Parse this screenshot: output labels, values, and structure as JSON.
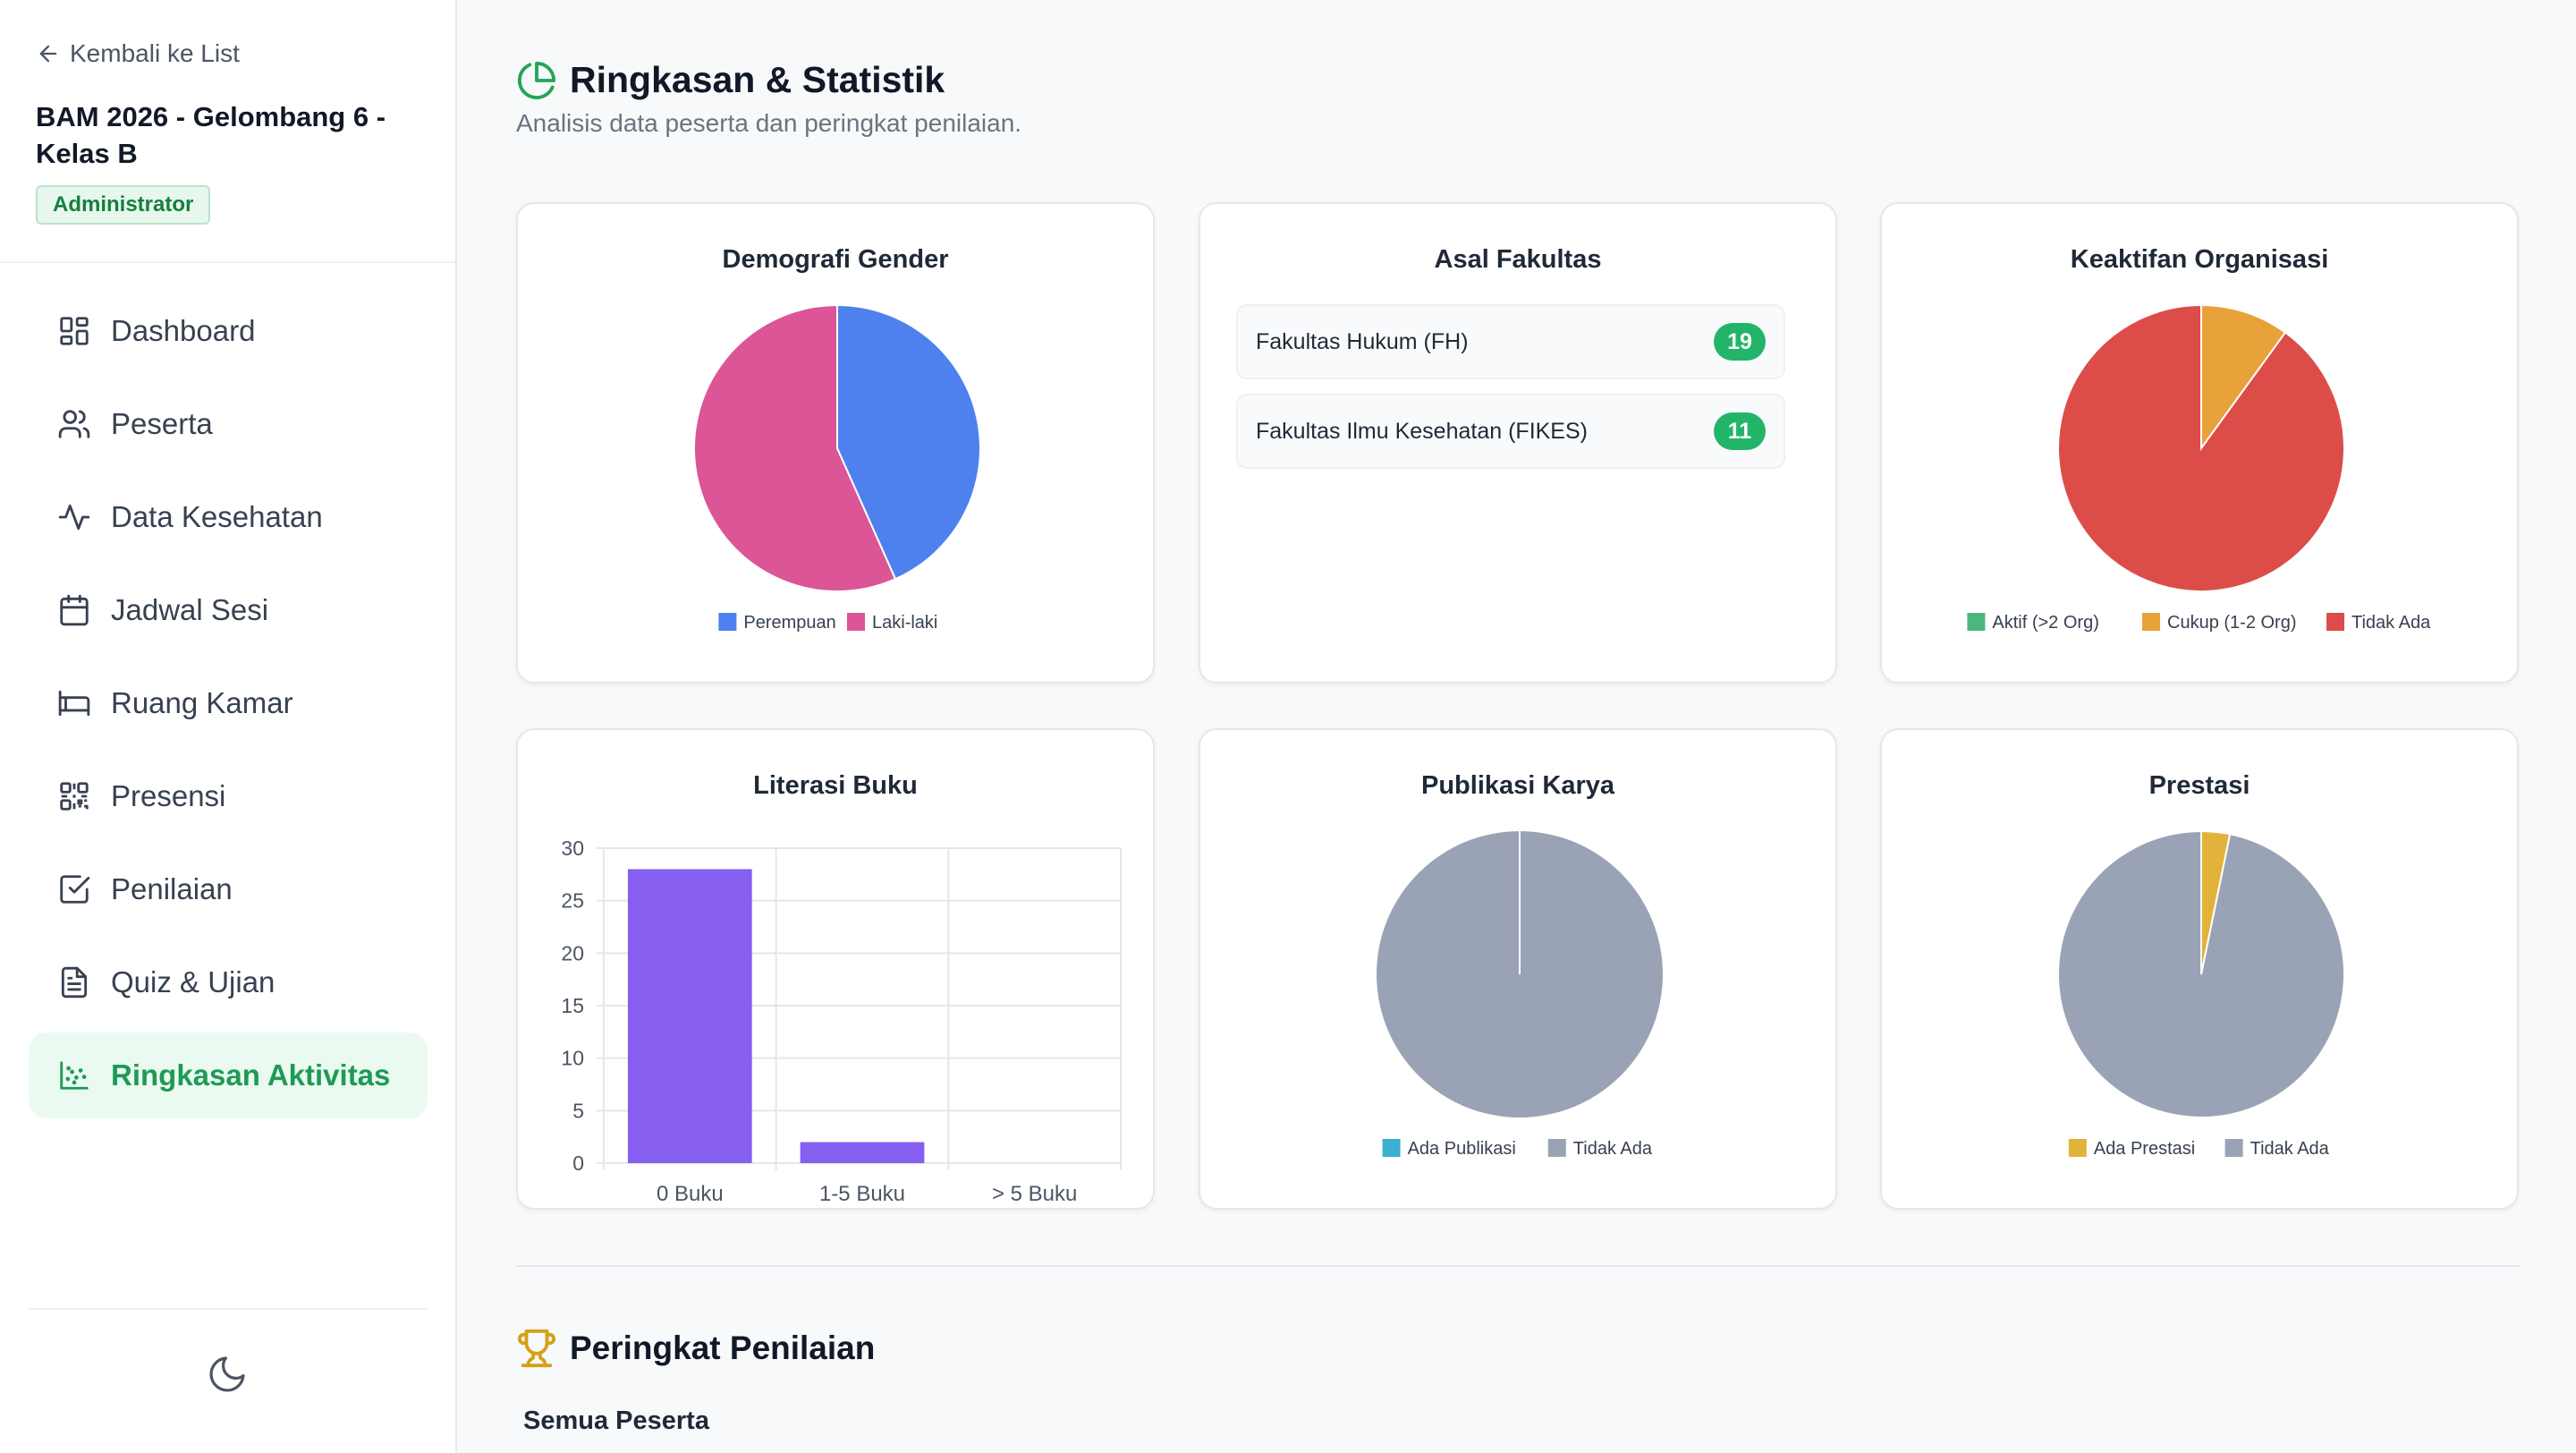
{
  "sidebar": {
    "back_label": "Kembali ke List",
    "course_title": "BAM 2026 - Gelombang 6 - Kelas B",
    "role": "Administrator",
    "items": [
      {
        "label": "Dashboard",
        "icon": "dashboard-icon"
      },
      {
        "label": "Peserta",
        "icon": "users-icon"
      },
      {
        "label": "Data Kesehatan",
        "icon": "activity-icon"
      },
      {
        "label": "Jadwal Sesi",
        "icon": "calendar-icon"
      },
      {
        "label": "Ruang Kamar",
        "icon": "bed-icon"
      },
      {
        "label": "Presensi",
        "icon": "qr-code-icon"
      },
      {
        "label": "Penilaian",
        "icon": "check-square-icon"
      },
      {
        "label": "Quiz & Ujian",
        "icon": "file-text-icon"
      },
      {
        "label": "Ringkasan Aktivitas",
        "icon": "scatter-chart-icon",
        "active": true
      }
    ],
    "theme_toggle_icon": "moon-icon"
  },
  "main": {
    "title": "Ringkasan & Statistik",
    "subtitle": "Analisis data peserta dan peringkat penilaian.",
    "title_icon": "pie-chart-icon",
    "faculty": {
      "title": "Asal Fakultas",
      "rows": [
        {
          "name": "Fakultas Hukum (FH)",
          "count": "19"
        },
        {
          "name": "Fakultas Ilmu Kesehatan (FIKES)",
          "count": "11"
        }
      ]
    },
    "ranking": {
      "title": "Peringkat Penilaian",
      "icon": "trophy-icon",
      "subtitle": "Semua Peserta"
    }
  },
  "colors": {
    "accent": "#22a55a",
    "blue": "#4e81ee",
    "pink": "#db5597",
    "green": "#4cb87e",
    "orange": "#e8a23a",
    "red": "#dc4d49",
    "purple": "#865ef0",
    "gray": "#9aa3b5",
    "cyan": "#3ab0d0",
    "gold": "#e2b33a"
  },
  "chart_data": [
    {
      "id": "gender",
      "type": "pie",
      "title": "Demografi Gender",
      "labels": [
        "Perempuan",
        "Laki-laki"
      ],
      "values": [
        13,
        17
      ],
      "colors": [
        "#4e81ee",
        "#db5597"
      ]
    },
    {
      "id": "org",
      "type": "pie",
      "title": "Keaktifan Organisasi",
      "labels": [
        "Aktif (>2 Org)",
        "Cukup (1-2 Org)",
        "Tidak Ada"
      ],
      "values": [
        0,
        3,
        27
      ],
      "colors": [
        "#4cb87e",
        "#e8a23a",
        "#dc4d49"
      ]
    },
    {
      "id": "literasi",
      "type": "bar",
      "title": "Literasi Buku",
      "categories": [
        "0 Buku",
        "1-5 Buku",
        "> 5 Buku"
      ],
      "values": [
        28,
        2,
        0
      ],
      "color": "#865ef0",
      "ylim": [
        0,
        30
      ],
      "yticks": [
        0,
        5,
        10,
        15,
        20,
        25,
        30
      ]
    },
    {
      "id": "publikasi",
      "type": "pie",
      "title": "Publikasi Karya",
      "labels": [
        "Ada Publikasi",
        "Tidak Ada"
      ],
      "values": [
        0,
        30
      ],
      "colors": [
        "#3ab0d0",
        "#9aa3b5"
      ]
    },
    {
      "id": "prestasi",
      "type": "pie",
      "title": "Prestasi",
      "labels": [
        "Ada Prestasi",
        "Tidak Ada"
      ],
      "values": [
        1,
        30
      ],
      "colors": [
        "#e2b33a",
        "#9aa3b5"
      ]
    }
  ]
}
